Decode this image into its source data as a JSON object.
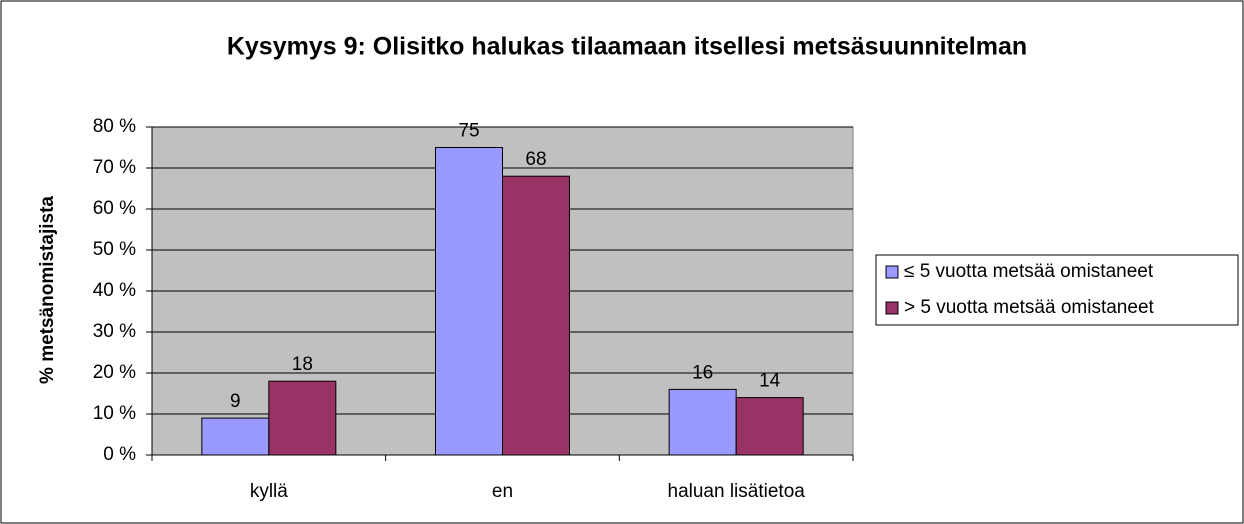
{
  "chart_data": {
    "type": "bar",
    "title": "Kysymys 9: Olisitko halukas tilaamaan itsellesi metsäsuunnitelman",
    "y_label": "% metsänomistajista",
    "categories": [
      "kyllä",
      "en",
      "haluan lisätietoa"
    ],
    "series": [
      {
        "name": "≤ 5 vuotta metsää omistaneet",
        "color": "#9999ff",
        "values": [
          9,
          75,
          16
        ]
      },
      {
        "name": "> 5 vuotta metsää omistaneet",
        "color": "#993366",
        "values": [
          18,
          68,
          14
        ]
      }
    ],
    "ylim": [
      0,
      80
    ],
    "yticks": [
      {
        "value": 0,
        "label": "0 %"
      },
      {
        "value": 10,
        "label": "10 %"
      },
      {
        "value": 20,
        "label": "20 %"
      },
      {
        "value": 30,
        "label": "30 %"
      },
      {
        "value": 40,
        "label": "40 %"
      },
      {
        "value": 50,
        "label": "50 %"
      },
      {
        "value": 60,
        "label": "60 %"
      },
      {
        "value": 70,
        "label": "70 %"
      },
      {
        "value": 80,
        "label": "80 %"
      }
    ],
    "grid": true,
    "legend": "right",
    "plot_background": "#c0c0c0"
  }
}
